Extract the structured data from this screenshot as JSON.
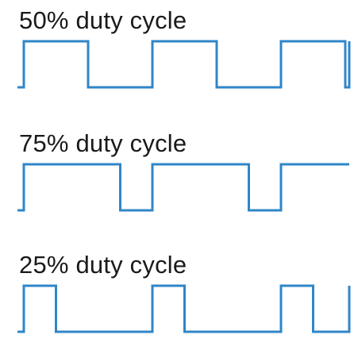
{
  "diagram": {
    "wave_color": "#2f86c8",
    "panels": [
      {
        "title": "50% duty cycle",
        "duty_percent": 50
      },
      {
        "title": "75% duty cycle",
        "duty_percent": 75
      },
      {
        "title": "25% duty cycle",
        "duty_percent": 25
      }
    ]
  }
}
